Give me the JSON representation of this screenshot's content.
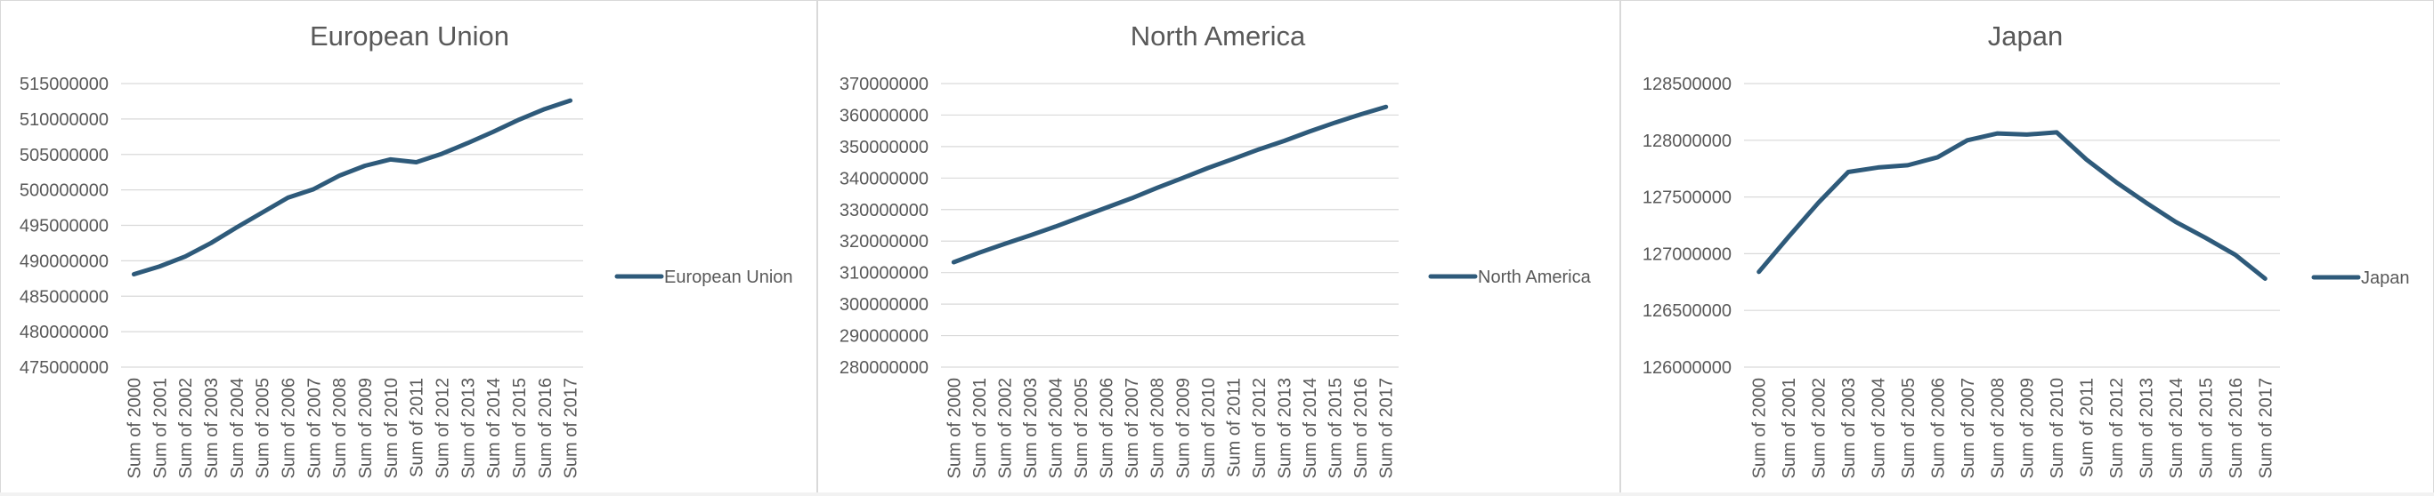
{
  "colors": {
    "series": "#2e5a7a"
  },
  "chart_data": [
    {
      "type": "line",
      "title": "European Union",
      "categories": [
        "Sum of 2000",
        "Sum of 2001",
        "Sum of 2002",
        "Sum of 2003",
        "Sum of 2004",
        "Sum of 2005",
        "Sum of 2006",
        "Sum of 2007",
        "Sum of 2008",
        "Sum of 2009",
        "Sum of 2010",
        "Sum of 2011",
        "Sum of 2012",
        "Sum of 2013",
        "Sum of 2014",
        "Sum of 2015",
        "Sum of 2016",
        "Sum of 2017"
      ],
      "series": [
        {
          "name": "European Union",
          "values": [
            488100000,
            489200000,
            490600000,
            492500000,
            494700000,
            496800000,
            498900000,
            500100000,
            502000000,
            503400000,
            504300000,
            503900000,
            505100000,
            506600000,
            508200000,
            509900000,
            511400000,
            512600000
          ]
        }
      ],
      "yticks": [
        "475000000",
        "480000000",
        "485000000",
        "490000000",
        "495000000",
        "500000000",
        "505000000",
        "510000000",
        "515000000"
      ],
      "ylim": [
        475000000,
        515000000
      ],
      "grid": true,
      "legend": "right"
    },
    {
      "type": "line",
      "title": "North America",
      "categories": [
        "Sum of 2000",
        "Sum of 2001",
        "Sum of 2002",
        "Sum of 2003",
        "Sum of 2004",
        "Sum of 2005",
        "Sum of 2006",
        "Sum of 2007",
        "Sum of 2008",
        "Sum of 2009",
        "Sum of 2010",
        "Sum of 2011",
        "Sum of 2012",
        "Sum of 2013",
        "Sum of 2014",
        "Sum of 2015",
        "Sum of 2016",
        "Sum of 2017"
      ],
      "series": [
        {
          "name": "North America",
          "values": [
            313300000,
            316300000,
            319100000,
            321800000,
            324600000,
            327600000,
            330600000,
            333600000,
            336900000,
            340000000,
            343200000,
            346100000,
            349100000,
            351800000,
            354800000,
            357600000,
            360200000,
            362600000
          ]
        }
      ],
      "yticks": [
        "280000000",
        "290000000",
        "300000000",
        "310000000",
        "320000000",
        "330000000",
        "340000000",
        "350000000",
        "360000000",
        "370000000"
      ],
      "ylim": [
        280000000,
        370000000
      ],
      "grid": true,
      "legend": "right"
    },
    {
      "type": "line",
      "title": "Japan",
      "categories": [
        "Sum of 2000",
        "Sum of 2001",
        "Sum of 2002",
        "Sum of 2003",
        "Sum of 2004",
        "Sum of 2005",
        "Sum of 2006",
        "Sum of 2007",
        "Sum of 2008",
        "Sum of 2009",
        "Sum of 2010",
        "Sum of 2011",
        "Sum of 2012",
        "Sum of 2013",
        "Sum of 2014",
        "Sum of 2015",
        "Sum of 2016",
        "Sum of 2017"
      ],
      "series": [
        {
          "name": "Japan",
          "values": [
            126840000,
            127150000,
            127450000,
            127720000,
            127760000,
            127780000,
            127850000,
            128000000,
            128060000,
            128050000,
            128070000,
            127830000,
            127630000,
            127450000,
            127280000,
            127140000,
            126990000,
            126780000
          ]
        }
      ],
      "yticks": [
        "126000000",
        "126500000",
        "127000000",
        "127500000",
        "128000000",
        "128500000"
      ],
      "ylim": [
        126000000,
        128500000
      ],
      "grid": true,
      "legend": "right"
    }
  ]
}
